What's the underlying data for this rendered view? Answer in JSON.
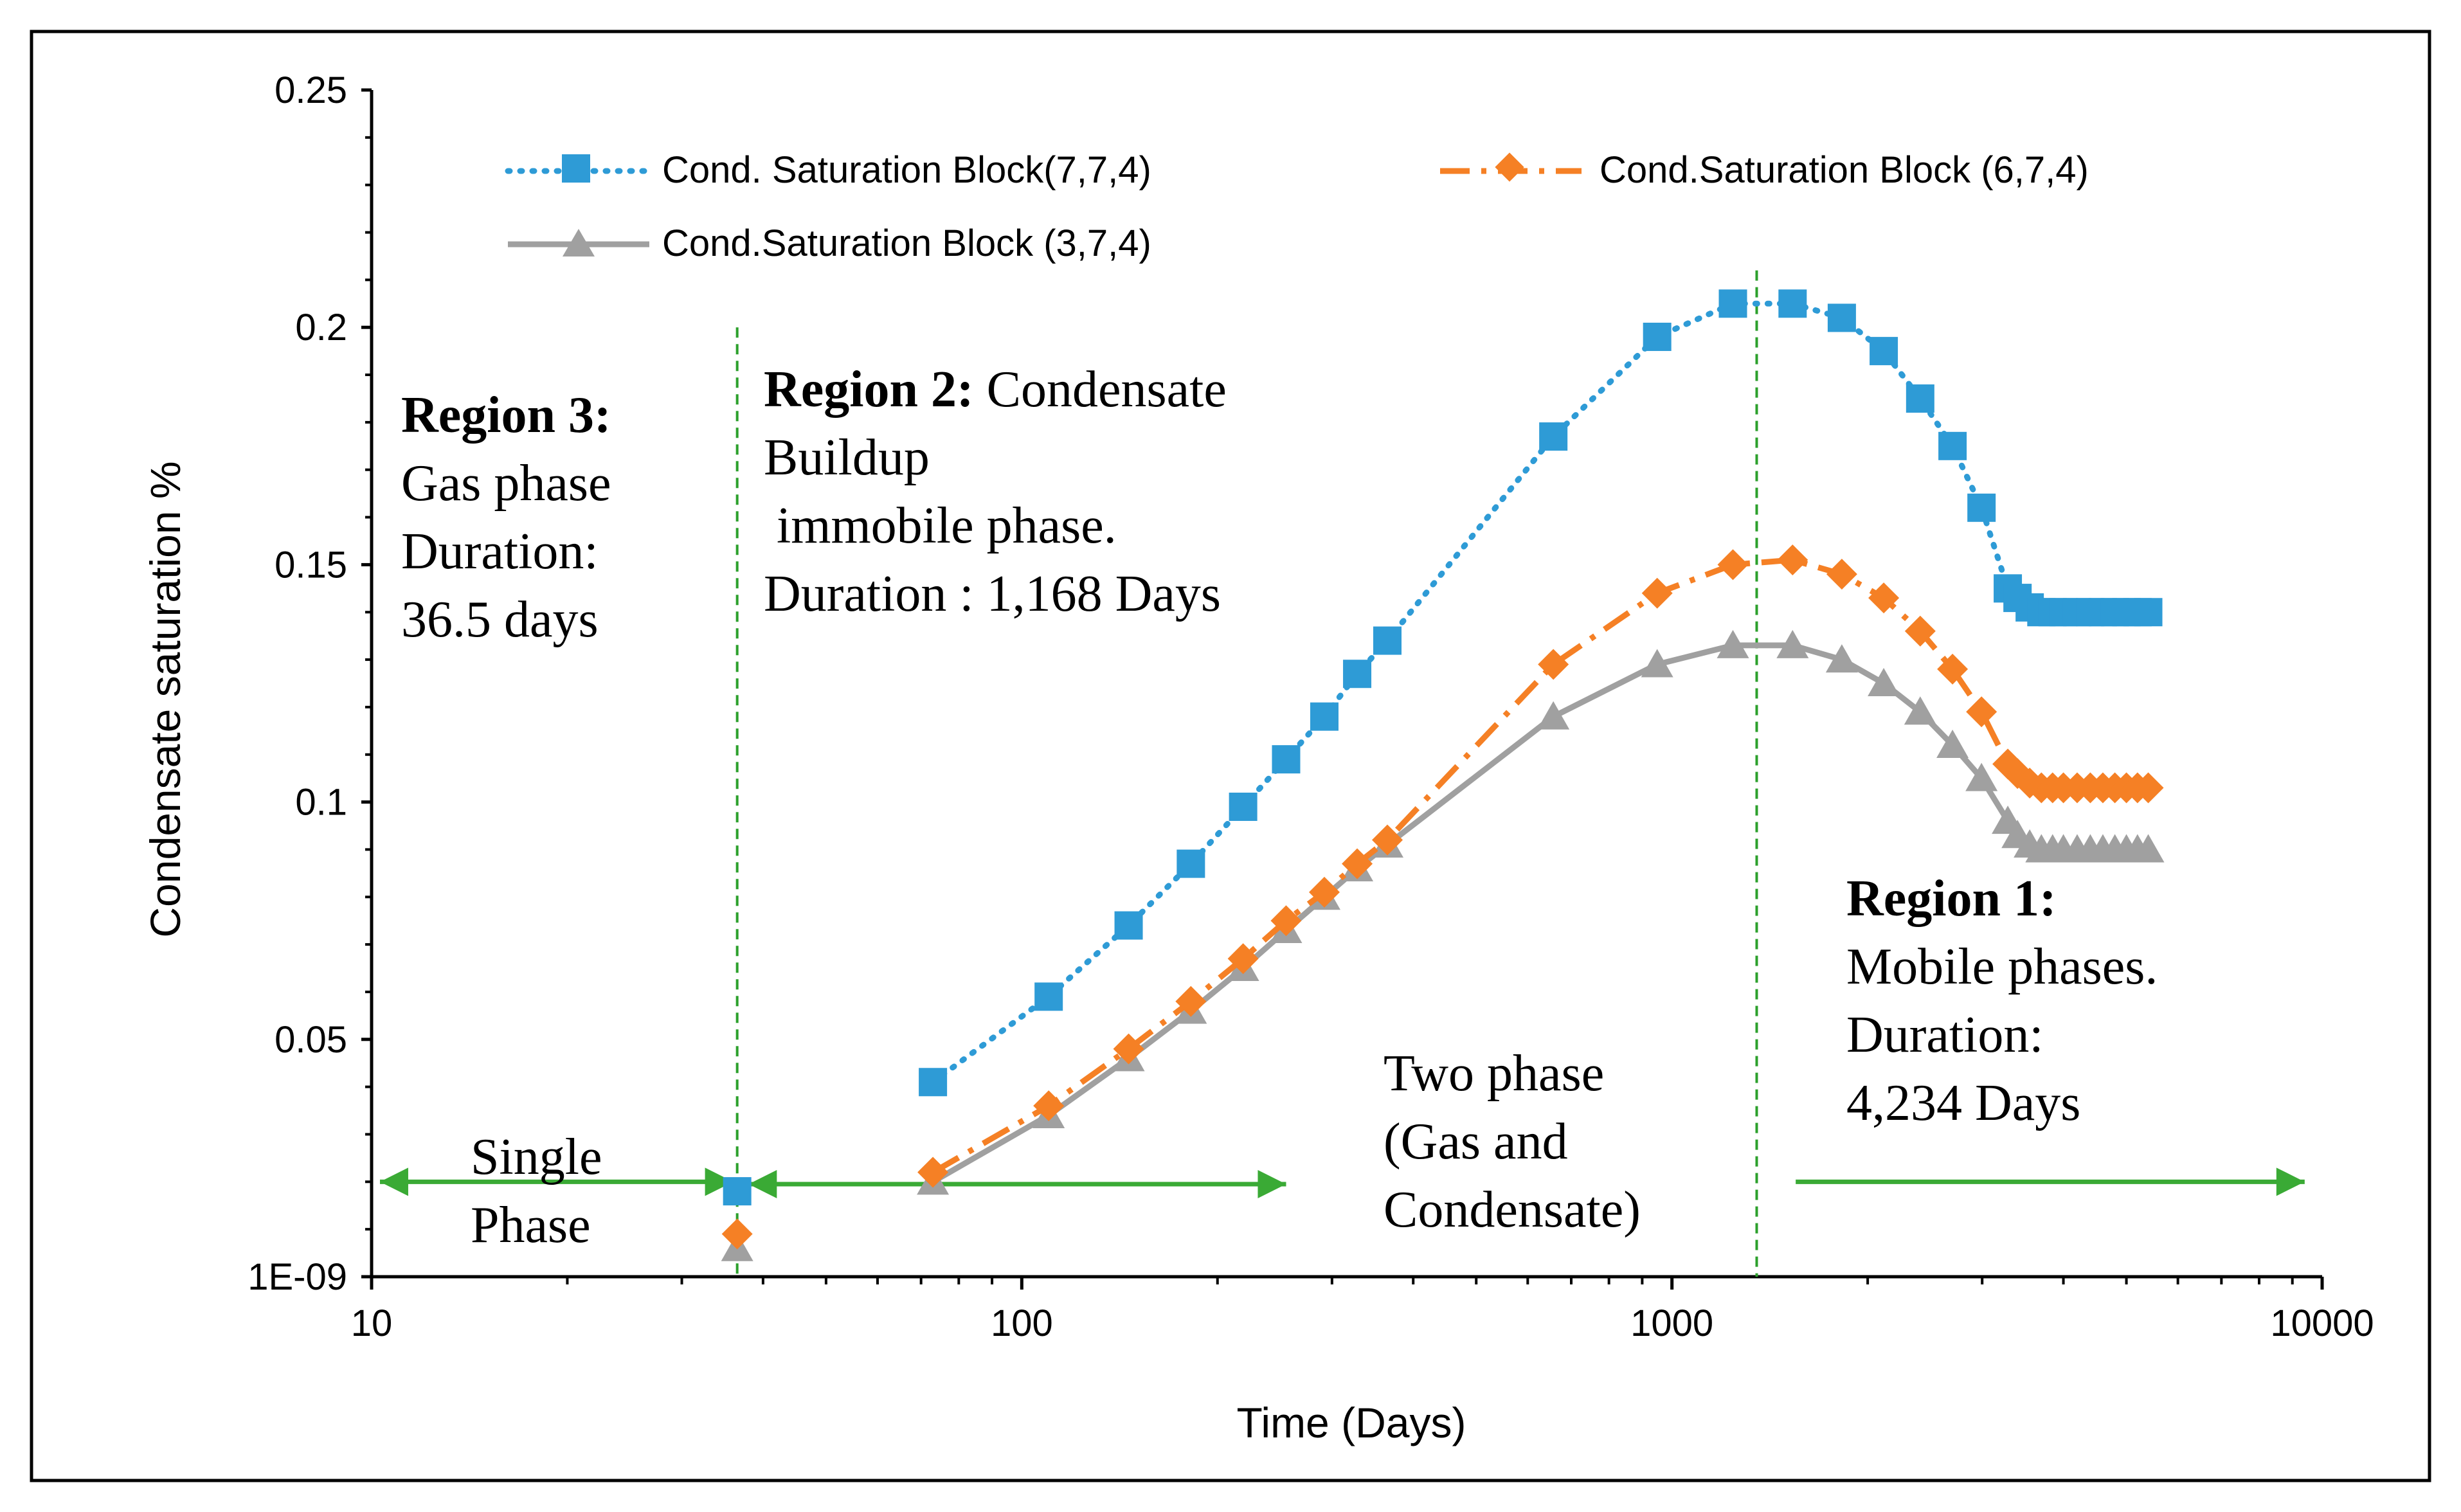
{
  "chart_data": {
    "type": "line",
    "xscale": "log",
    "xlim": [
      10,
      10000
    ],
    "ylim": [
      0,
      0.25
    ],
    "xlabel": "Time (Days)",
    "ylabel": "Condensate saturation %",
    "x_ticks": [
      "10",
      "100",
      "1000",
      "10000"
    ],
    "y_ticks": [
      "1E-09",
      "0.05",
      "0.1",
      "0.15",
      "0.2",
      "0.25"
    ],
    "legend_position": "top",
    "series": [
      {
        "name": "Cond. Saturation Block(7,7,4)",
        "color": "#2E9BD6",
        "line_style": "dotted",
        "marker": "square",
        "x": [
          36.5,
          73,
          110,
          146,
          182,
          219,
          255,
          292,
          328,
          365,
          657,
          949,
          1241,
          1533,
          1825,
          2117,
          2409,
          2701,
          2993,
          3285,
          3400,
          3550,
          3700,
          3850,
          4000,
          4200,
          4400,
          4600,
          4800,
          5000,
          5200,
          5402
        ],
        "y": [
          0.018,
          0.041,
          0.059,
          0.074,
          0.087,
          0.099,
          0.109,
          0.118,
          0.127,
          0.134,
          0.177,
          0.198,
          0.205,
          0.205,
          0.202,
          0.195,
          0.185,
          0.175,
          0.162,
          0.145,
          0.143,
          0.141,
          0.14,
          0.14,
          0.14,
          0.14,
          0.14,
          0.14,
          0.14,
          0.14,
          0.14,
          0.14
        ]
      },
      {
        "name": "Cond.Saturation Block (6,7,4)",
        "color": "#F58025",
        "line_style": "dash-dot",
        "marker": "diamond",
        "x": [
          36.5,
          73,
          110,
          146,
          182,
          219,
          255,
          292,
          328,
          365,
          657,
          949,
          1241,
          1533,
          1825,
          2117,
          2409,
          2701,
          2993,
          3285,
          3400,
          3550,
          3700,
          3850,
          4000,
          4200,
          4400,
          4600,
          4800,
          5000,
          5200,
          5402
        ],
        "y": [
          0.009,
          0.022,
          0.036,
          0.048,
          0.058,
          0.067,
          0.075,
          0.081,
          0.087,
          0.092,
          0.129,
          0.144,
          0.15,
          0.151,
          0.148,
          0.143,
          0.136,
          0.128,
          0.119,
          0.108,
          0.106,
          0.104,
          0.103,
          0.103,
          0.103,
          0.103,
          0.103,
          0.103,
          0.103,
          0.103,
          0.103,
          0.103
        ]
      },
      {
        "name": "Cond.Saturation Block (3,7,4)",
        "color": "#A0A0A0",
        "line_style": "solid",
        "marker": "triangle",
        "x": [
          36.5,
          73,
          110,
          146,
          182,
          219,
          255,
          292,
          328,
          365,
          657,
          949,
          1241,
          1533,
          1825,
          2117,
          2409,
          2701,
          2993,
          3285,
          3400,
          3550,
          3700,
          3850,
          4000,
          4200,
          4400,
          4600,
          4800,
          5000,
          5200,
          5402
        ],
        "y": [
          0.006,
          0.02,
          0.034,
          0.046,
          0.056,
          0.065,
          0.073,
          0.08,
          0.086,
          0.091,
          0.118,
          0.129,
          0.133,
          0.133,
          0.13,
          0.125,
          0.119,
          0.112,
          0.105,
          0.096,
          0.093,
          0.091,
          0.09,
          0.09,
          0.09,
          0.09,
          0.09,
          0.09,
          0.09,
          0.09,
          0.09,
          0.09
        ]
      }
    ],
    "vertical_lines": [
      {
        "x": 36.5,
        "color": "#2CA02C",
        "style": "dashed",
        "y_from": 0,
        "y_to": 0.2
      },
      {
        "x": 1350,
        "color": "#2CA02C",
        "style": "dashed",
        "y_from": 0,
        "y_to": 0.212
      }
    ],
    "phase_arrows": [
      {
        "x_from": 10.3,
        "x_to": 36,
        "y": 0.02
      },
      {
        "x_from": 255,
        "x_to": 38,
        "y": 0.0195
      },
      {
        "x_from": 1550,
        "x_to": 9400,
        "y": 0.02
      }
    ],
    "annotations": {
      "region3": {
        "bold": "Region 3:",
        "lines": [
          "Gas phase",
          "Duration:",
          "36.5 days"
        ]
      },
      "region2": {
        "bold": "Region 2:",
        "first_line_rest": " Condensate",
        "lines": [
          "Buildup",
          " immobile phase.",
          "Duration : 1,168 Days"
        ]
      },
      "region1": {
        "bold": "Region 1:",
        "lines": [
          "Mobile phases.",
          "Duration:",
          "4,234 Days"
        ]
      },
      "single_phase": [
        "Single",
        "Phase"
      ],
      "two_phase": [
        "Two phase",
        "(Gas and",
        "Condensate)"
      ]
    }
  }
}
